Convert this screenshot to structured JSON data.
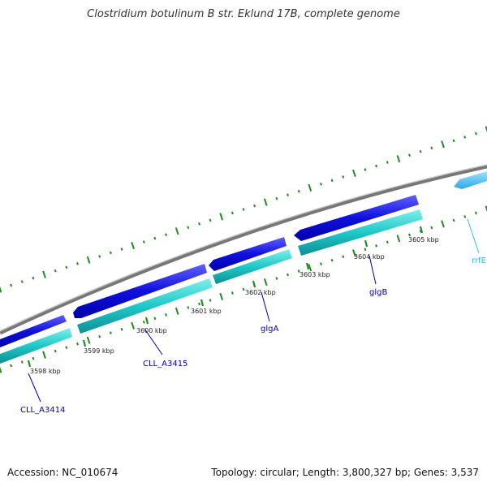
{
  "title": "Clostridium botulinum B str. Eklund 17B, complete genome",
  "footer": {
    "accession": "Accession: NC_010674",
    "stats": "Topology: circular; Length: 3,800,327 bp; Genes: 3,537"
  },
  "colors": {
    "backbone": "#888888",
    "cds_forward": "#1a1ae6",
    "cds_reverse": "#1ec8c8",
    "rrna": "#33bbee",
    "tick": "#228b22",
    "label_gene": "#0000aa",
    "label_rrna": "#33bbee"
  },
  "scale": {
    "unit": "kbp",
    "range_kbp": [
      3597.2,
      3605.8
    ]
  },
  "ticks": [
    {
      "kbp": 3598,
      "label": "3598 kbp"
    },
    {
      "kbp": 3599,
      "label": "3599 kbp"
    },
    {
      "kbp": 3600,
      "label": "3600 kbp"
    },
    {
      "kbp": 3601,
      "label": "3601 kbp"
    },
    {
      "kbp": 3602,
      "label": "3602 kbp"
    },
    {
      "kbp": 3603,
      "label": "3603 kbp"
    },
    {
      "kbp": 3604,
      "label": "3604 kbp"
    },
    {
      "kbp": 3605,
      "label": "3605 kbp"
    }
  ],
  "features": [
    {
      "name": "CLL_A3414",
      "start_kbp": 3597.2,
      "end_kbp": 3597.8,
      "strand": "reverse",
      "type": "CDS"
    },
    {
      "name": "CLL_A3415",
      "start_kbp": 3598.3,
      "end_kbp": 3600.8,
      "strand": "reverse",
      "type": "CDS"
    },
    {
      "name": "glgA",
      "start_kbp": 3600.85,
      "end_kbp": 3602.3,
      "strand": "reverse",
      "type": "CDS"
    },
    {
      "name": "glgB",
      "start_kbp": 3602.35,
      "end_kbp": 3605.0,
      "strand": "reverse",
      "type": "CDS"
    },
    {
      "name": "rrfE",
      "start_kbp": 3605.7,
      "end_kbp": 3605.8,
      "strand": "reverse",
      "type": "rRNA"
    }
  ],
  "labels": [
    {
      "text": "CLL_A3414",
      "kind": "gene"
    },
    {
      "text": "CLL_A3415",
      "kind": "gene"
    },
    {
      "text": "glgA",
      "kind": "gene"
    },
    {
      "text": "glgB",
      "kind": "gene"
    },
    {
      "text": "rrfE",
      "kind": "rrna"
    }
  ]
}
